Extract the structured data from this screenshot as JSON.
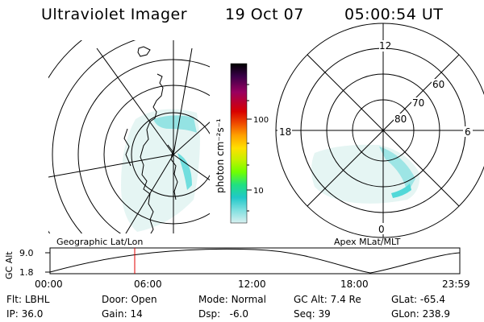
{
  "header": {
    "instrument": "Ultraviolet Imager",
    "date": "19 Oct 07",
    "time": "05:00:54 UT"
  },
  "colorbar": {
    "unit_label": "photon cm⁻²s⁻¹",
    "ticks": [
      "100",
      "10"
    ],
    "scale": "log",
    "colors": [
      "#000000",
      "#3a0048",
      "#9a0060",
      "#d80000",
      "#f05000",
      "#ffa000",
      "#ffe000",
      "#c8f000",
      "#70ff00",
      "#20e080",
      "#20c8c8",
      "#80e0e0",
      "#d0f0f0"
    ]
  },
  "polar_plot": {
    "mlt_labels": {
      "top": "12",
      "left": "18",
      "right": "6",
      "bottom": "0"
    },
    "lat_labels": [
      "60",
      "70",
      "80"
    ]
  },
  "map_labels": {
    "left": "Geographic Lat/Lon",
    "right": "Apex MLat/MLT"
  },
  "altitude_chart": {
    "ylabel": "GC Alt",
    "yticks": [
      "9.0",
      "1.8"
    ],
    "xticks": [
      "00:00",
      "06:00",
      "12:00",
      "18:00",
      "23:59"
    ],
    "current_time_marker": "05:00",
    "marker_color": "#e00000"
  },
  "status": {
    "col1": [
      {
        "k": "Flt:",
        "v": "LBHL"
      },
      {
        "k": "IP:",
        "v": "36.0"
      }
    ],
    "col2": [
      {
        "k": "Door:",
        "v": "Open"
      },
      {
        "k": "Gain:",
        "v": "14"
      }
    ],
    "col3": [
      {
        "k": "Mode:",
        "v": "Normal"
      },
      {
        "k": "Dsp:",
        "v": "-6.0"
      }
    ],
    "col4": [
      {
        "k": "GC Alt:",
        "v": "7.4 Re"
      },
      {
        "k": "Seq:",
        "v": "39"
      }
    ],
    "col5": [
      {
        "k": "GLat:",
        "v": "-65.4"
      },
      {
        "k": "GLon:",
        "v": "238.9"
      }
    ]
  }
}
